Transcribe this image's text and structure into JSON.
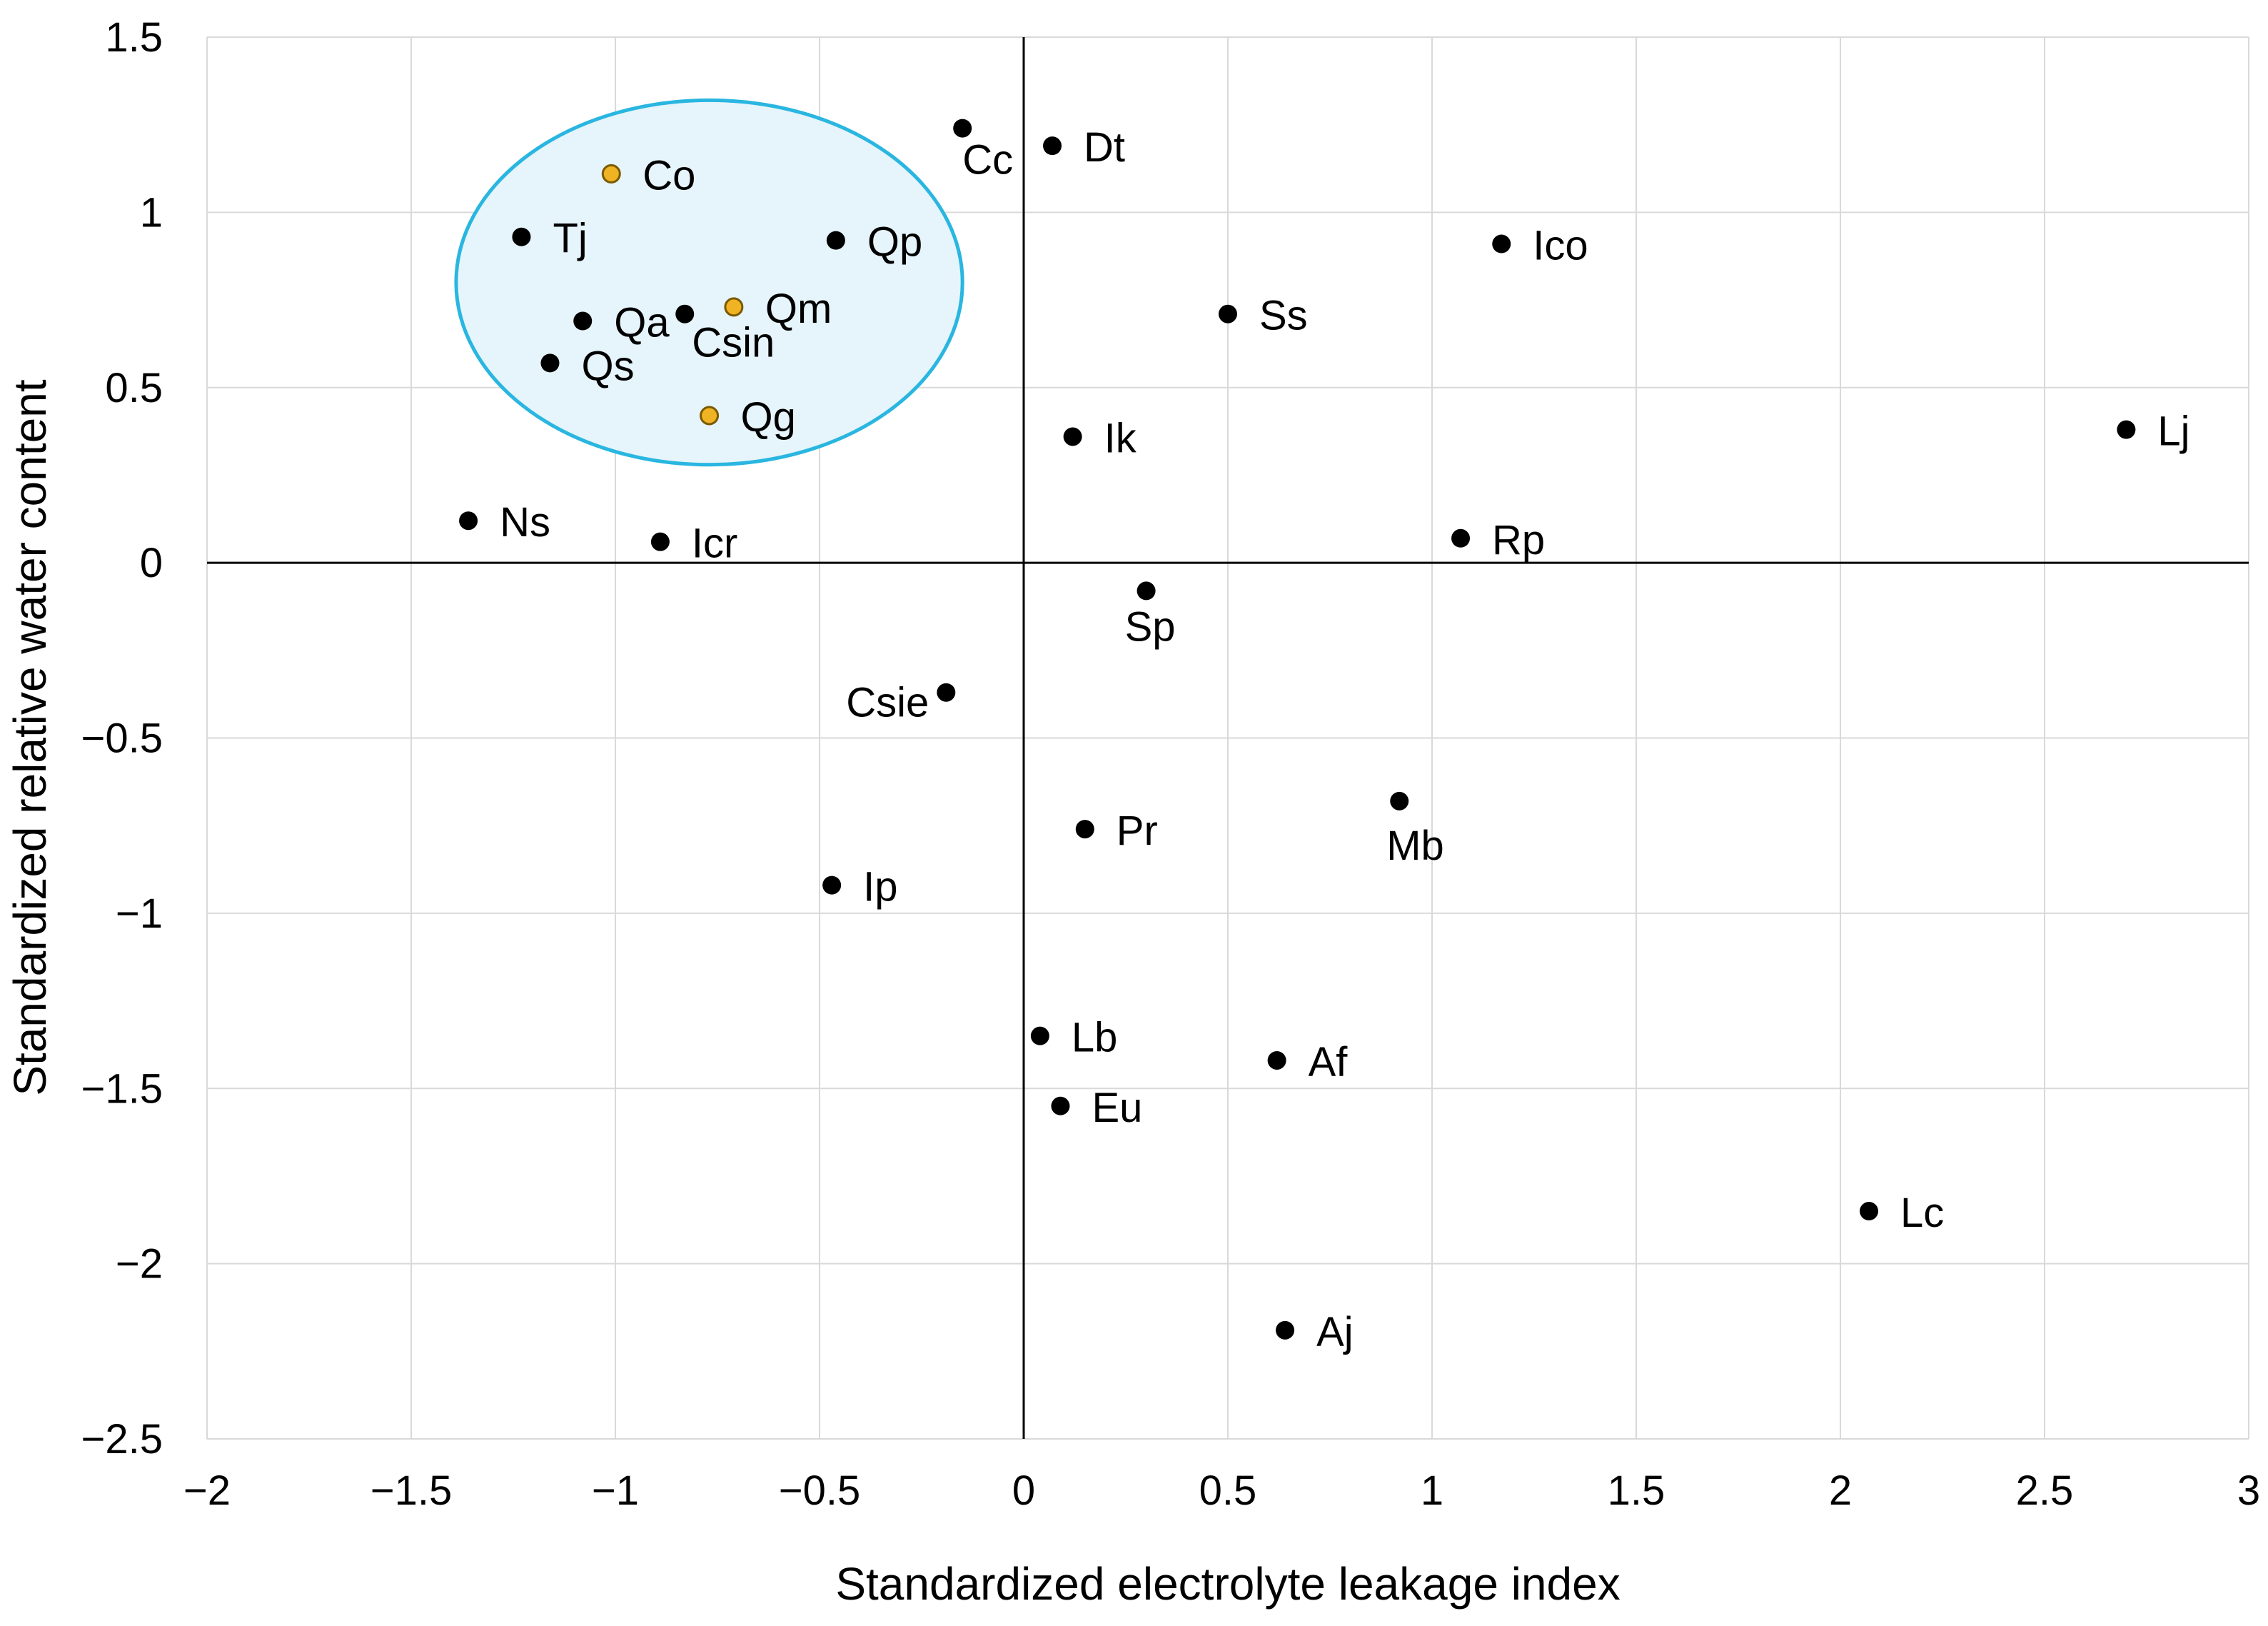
{
  "chart_data": {
    "type": "scatter",
    "title": "",
    "xlabel": "Standardized electrolyte leakage index",
    "ylabel": "Standardized relative water content",
    "xlim": [
      -2,
      3
    ],
    "ylim": [
      -2.5,
      1.5
    ],
    "x_ticks": [
      "−2",
      "−1.5",
      "−1",
      "−0.5",
      "0",
      "0.5",
      "1",
      "1.5",
      "2",
      "2.5",
      "3"
    ],
    "y_ticks": [
      "1.5",
      "1",
      "0.5",
      "0",
      "−0.5",
      "−1",
      "−1.5",
      "−2",
      "−2.5"
    ],
    "grid": true,
    "colors": {
      "default_point": "#000000",
      "highlight_point": "#f0b323",
      "highlight_point_edge": "#7a5a00",
      "cluster_fill": "#e6f4fb",
      "cluster_stroke": "#29b6e0",
      "grid": "#d9d9d9"
    },
    "cluster": {
      "center": [
        -0.77,
        0.8
      ],
      "radius_x": 0.62,
      "radius_y": 0.52
    },
    "points": [
      {
        "label": "Co",
        "x": -1.01,
        "y": 1.11,
        "group": "highlight"
      },
      {
        "label": "Tj",
        "x": -1.23,
        "y": 0.93,
        "group": "default"
      },
      {
        "label": "Qp",
        "x": -0.46,
        "y": 0.92,
        "group": "default"
      },
      {
        "label": "Qm",
        "x": -0.71,
        "y": 0.73,
        "group": "highlight"
      },
      {
        "label": "Qa",
        "x": -1.08,
        "y": 0.69,
        "group": "default"
      },
      {
        "label": "Csin",
        "x": -0.83,
        "y": 0.71,
        "group": "default"
      },
      {
        "label": "Qs",
        "x": -1.16,
        "y": 0.57,
        "group": "default"
      },
      {
        "label": "Qg",
        "x": -0.77,
        "y": 0.42,
        "group": "highlight"
      },
      {
        "label": "Cc",
        "x": -0.15,
        "y": 1.24,
        "group": "default"
      },
      {
        "label": "Dt",
        "x": 0.07,
        "y": 1.19,
        "group": "default"
      },
      {
        "label": "Ico",
        "x": 1.17,
        "y": 0.91,
        "group": "default"
      },
      {
        "label": "Ss",
        "x": 0.5,
        "y": 0.71,
        "group": "default"
      },
      {
        "label": "Ik",
        "x": 0.12,
        "y": 0.36,
        "group": "default"
      },
      {
        "label": "Lj",
        "x": 2.7,
        "y": 0.38,
        "group": "default"
      },
      {
        "label": "Ns",
        "x": -1.36,
        "y": 0.12,
        "group": "default"
      },
      {
        "label": "Icr",
        "x": -0.89,
        "y": 0.06,
        "group": "default"
      },
      {
        "label": "Rp",
        "x": 1.07,
        "y": 0.07,
        "group": "default"
      },
      {
        "label": "Sp",
        "x": 0.3,
        "y": -0.08,
        "group": "default"
      },
      {
        "label": "Csie",
        "x": -0.19,
        "y": -0.37,
        "group": "default"
      },
      {
        "label": "Mb",
        "x": 0.92,
        "y": -0.68,
        "group": "default"
      },
      {
        "label": "Pr",
        "x": 0.15,
        "y": -0.76,
        "group": "default"
      },
      {
        "label": "Ip",
        "x": -0.47,
        "y": -0.92,
        "group": "default"
      },
      {
        "label": "Lb",
        "x": 0.04,
        "y": -1.35,
        "group": "default"
      },
      {
        "label": "Af",
        "x": 0.62,
        "y": -1.42,
        "group": "default"
      },
      {
        "label": "Eu",
        "x": 0.09,
        "y": -1.55,
        "group": "default"
      },
      {
        "label": "Lc",
        "x": 2.07,
        "y": -1.85,
        "group": "default"
      },
      {
        "label": "Aj",
        "x": 0.64,
        "y": -2.19,
        "group": "default"
      }
    ]
  }
}
